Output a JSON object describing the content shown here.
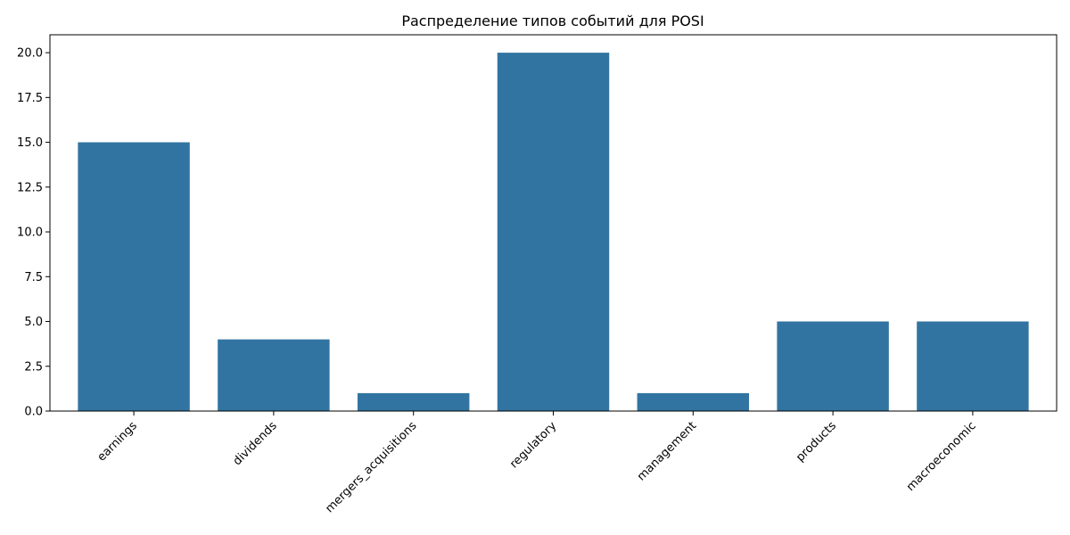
{
  "chart_data": {
    "type": "bar",
    "title": "Распределение типов событий для POSI",
    "xlabel": "",
    "ylabel": "",
    "categories": [
      "earnings",
      "dividends",
      "mergers_acquisitions",
      "regulatory",
      "management",
      "products",
      "macroeconomic"
    ],
    "values": [
      15,
      4,
      1,
      20,
      1,
      5,
      5
    ],
    "ylim": [
      0,
      21
    ],
    "yticks": [
      "0.0",
      "2.5",
      "5.0",
      "7.5",
      "10.0",
      "12.5",
      "15.0",
      "17.5",
      "20.0"
    ],
    "grid": false,
    "legend": "none",
    "bar_color": "#3274a1",
    "xtick_rotation": 45
  }
}
